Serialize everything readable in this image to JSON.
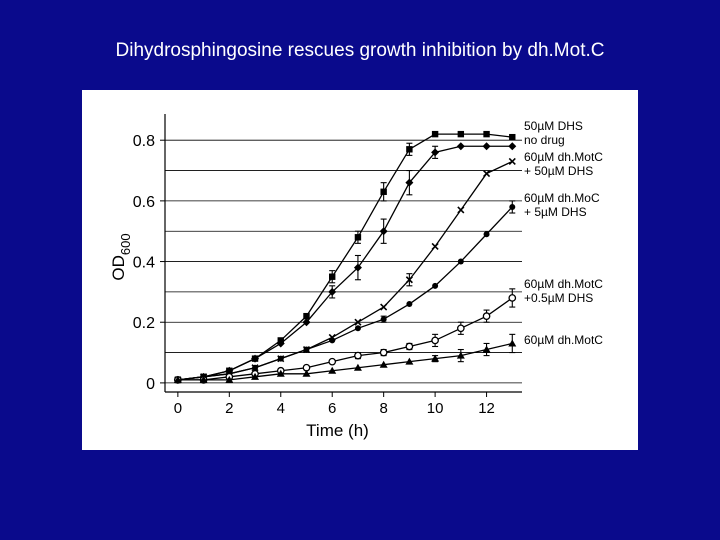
{
  "slide": {
    "title": "Dihydrosphingosine rescues growth inhibition by dh.Mot.C",
    "background_color": "#0a0a8c",
    "panel_color": "#ffffff"
  },
  "chart_data": {
    "type": "line",
    "title": "",
    "xlabel": "Time (h)",
    "ylabel": "OD",
    "ylabel_subscript": "600",
    "xlim": [
      -0.5,
      13.3
    ],
    "ylim": [
      -0.03,
      0.86
    ],
    "xticks": [
      0,
      2,
      4,
      6,
      8,
      10,
      12
    ],
    "xtick_labels": [
      "0",
      "2",
      "4",
      "6",
      "8",
      "10",
      "12"
    ],
    "yticks": [
      0,
      0.2,
      0.4,
      0.6,
      0.8
    ],
    "ytick_labels": [
      "0",
      "0.2",
      "0.4",
      "0.6",
      "0.8"
    ],
    "grid": {
      "horizontal": true,
      "vertical": false
    },
    "legend_position": "right",
    "series": [
      {
        "label": [
          "50µM DHS"
        ],
        "marker": "square",
        "x": [
          0,
          1,
          2,
          3,
          4,
          5,
          6,
          7,
          8,
          9,
          10,
          11,
          12,
          13
        ],
        "y": [
          0.01,
          0.02,
          0.04,
          0.08,
          0.14,
          0.22,
          0.35,
          0.48,
          0.63,
          0.77,
          0.82,
          0.82,
          0.82,
          0.81
        ],
        "err": [
          0,
          0,
          0,
          0,
          0,
          0,
          0.02,
          0.02,
          0.03,
          0.02,
          0,
          0,
          0,
          0
        ]
      },
      {
        "label": [
          "no drug"
        ],
        "marker": "diamond",
        "x": [
          0,
          1,
          2,
          3,
          4,
          5,
          6,
          7,
          8,
          9,
          10,
          11,
          12,
          13
        ],
        "y": [
          0.01,
          0.02,
          0.04,
          0.08,
          0.13,
          0.2,
          0.3,
          0.38,
          0.5,
          0.66,
          0.76,
          0.78,
          0.78,
          0.78
        ],
        "err": [
          0,
          0,
          0,
          0,
          0,
          0,
          0.02,
          0.04,
          0.04,
          0.04,
          0.02,
          0,
          0,
          0
        ]
      },
      {
        "label": [
          "60µM dh.MotC",
          "+ 50µM DHS"
        ],
        "marker": "x",
        "x": [
          0,
          1,
          2,
          3,
          4,
          5,
          6,
          7,
          8,
          9,
          10,
          11,
          12,
          13
        ],
        "y": [
          0.01,
          0.02,
          0.03,
          0.05,
          0.08,
          0.11,
          0.15,
          0.2,
          0.25,
          0.34,
          0.45,
          0.57,
          0.69,
          0.73
        ],
        "err": [
          0,
          0,
          0,
          0,
          0,
          0,
          0,
          0,
          0,
          0.02,
          0,
          0,
          0,
          0
        ]
      },
      {
        "label": [
          "60µM dh.MoC",
          "+ 5µM DHS"
        ],
        "marker": "dot",
        "x": [
          0,
          1,
          2,
          3,
          4,
          5,
          6,
          7,
          8,
          9,
          10,
          11,
          12,
          13
        ],
        "y": [
          0.01,
          0.02,
          0.03,
          0.05,
          0.08,
          0.11,
          0.14,
          0.18,
          0.21,
          0.26,
          0.32,
          0.4,
          0.49,
          0.58
        ],
        "err": [
          0,
          0,
          0,
          0,
          0,
          0,
          0,
          0,
          0.01,
          0,
          0,
          0,
          0,
          0.02
        ]
      },
      {
        "label": [
          "60µM dh.MotC",
          "+0.5µM DHS"
        ],
        "marker": "circle",
        "x": [
          0,
          1,
          2,
          3,
          4,
          5,
          6,
          7,
          8,
          9,
          10,
          11,
          12,
          13
        ],
        "y": [
          0.01,
          0.01,
          0.02,
          0.03,
          0.04,
          0.05,
          0.07,
          0.09,
          0.1,
          0.12,
          0.14,
          0.18,
          0.22,
          0.28
        ],
        "err": [
          0,
          0,
          0,
          0,
          0,
          0,
          0,
          0.01,
          0.01,
          0.01,
          0.02,
          0.02,
          0.02,
          0.03
        ]
      },
      {
        "label": [
          "60µM dh.MotC"
        ],
        "marker": "triangle",
        "x": [
          0,
          1,
          2,
          3,
          4,
          5,
          6,
          7,
          8,
          9,
          10,
          11,
          12,
          13
        ],
        "y": [
          0.01,
          0.01,
          0.01,
          0.02,
          0.03,
          0.03,
          0.04,
          0.05,
          0.06,
          0.07,
          0.08,
          0.09,
          0.11,
          0.13
        ],
        "err": [
          0,
          0,
          0,
          0,
          0,
          0,
          0,
          0,
          0,
          0,
          0.01,
          0.02,
          0.02,
          0.03
        ]
      }
    ]
  }
}
